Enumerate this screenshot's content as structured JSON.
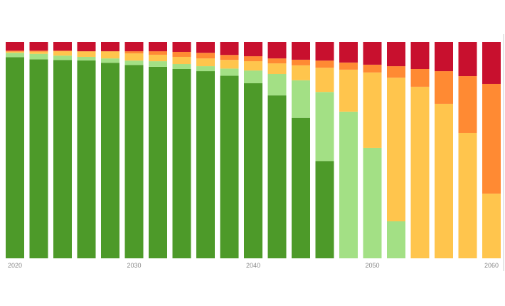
{
  "chart_data": {
    "type": "bar",
    "stacked": true,
    "normalized": true,
    "title": "",
    "xlabel": "",
    "ylabel": "",
    "ylim": [
      0,
      100
    ],
    "grid": false,
    "legend": "none",
    "categories": [
      2020,
      2022,
      2024,
      2026,
      2028,
      2030,
      2032,
      2034,
      2036,
      2038,
      2040,
      2042,
      2044,
      2046,
      2048,
      2050,
      2052,
      2054,
      2056,
      2058,
      2060
    ],
    "x_tick_labels": [
      "2020",
      "2030",
      "2040",
      "2050",
      "2060"
    ],
    "series": [
      {
        "color": "#4d9a29",
        "values": [
          93,
          92,
          91.7,
          91.5,
          90.4,
          89.4,
          88.5,
          87.5,
          86.5,
          84.4,
          81,
          75.3,
          64.9,
          45,
          0,
          0,
          0,
          0,
          0,
          0,
          0
        ]
      },
      {
        "color": "#a3e085",
        "values": [
          2,
          2.5,
          2,
          1.6,
          2,
          2,
          2.6,
          2.3,
          2.3,
          3.3,
          5.9,
          9.9,
          17.4,
          31.9,
          67.8,
          51,
          17.1,
          0,
          0,
          0,
          0
        ]
      },
      {
        "color": "#ffc54d",
        "values": [
          0.5,
          1,
          2,
          2.6,
          3.3,
          3.3,
          3,
          3.3,
          3.6,
          4,
          4.3,
          4.9,
          6.9,
          11.2,
          19.4,
          34.9,
          66.4,
          79.3,
          71.4,
          57.9,
          29.9
        ]
      },
      {
        "color": "#ff8a33",
        "values": [
          0.5,
          0.5,
          0.3,
          0,
          0,
          1,
          1.6,
          2.3,
          2.6,
          2.3,
          2.3,
          2.3,
          2.6,
          3.3,
          3.3,
          3.6,
          5.3,
          8.2,
          15.1,
          26.3,
          50.7
        ]
      },
      {
        "color": "#c8102e",
        "values": [
          4,
          4,
          4,
          4.3,
          4.3,
          4.3,
          4.3,
          4.6,
          5,
          6,
          6.6,
          7.6,
          8.2,
          8.6,
          9.5,
          10.5,
          11.2,
          12.5,
          13.5,
          15.8,
          19.4
        ]
      }
    ]
  }
}
